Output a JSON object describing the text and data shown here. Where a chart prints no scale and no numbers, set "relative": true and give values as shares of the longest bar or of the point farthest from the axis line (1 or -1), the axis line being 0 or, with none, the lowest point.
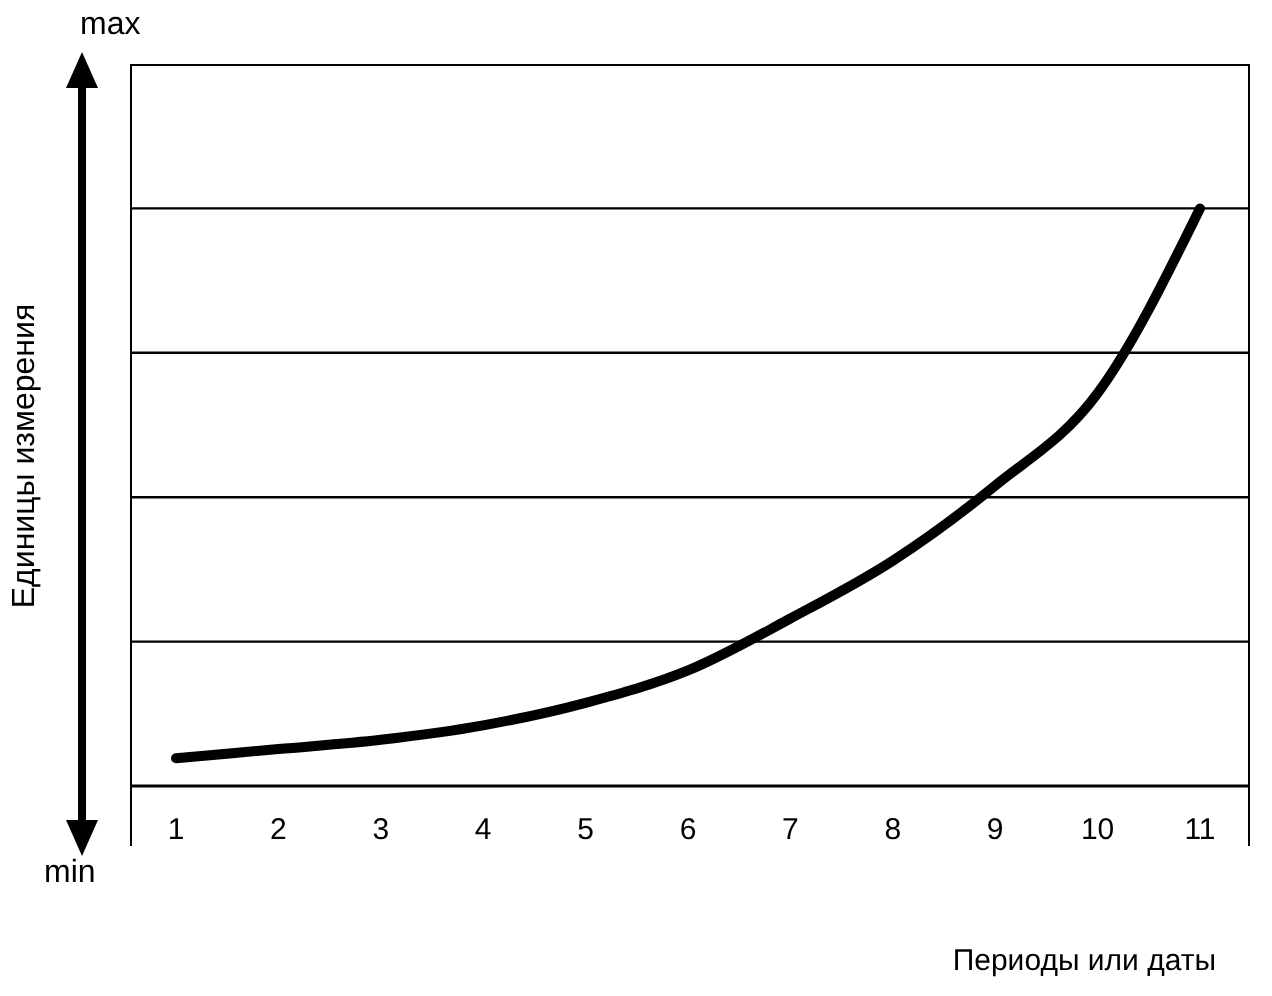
{
  "chart_data": {
    "type": "line",
    "relative": true,
    "xlabel": "Периоды или даты",
    "ylabel": "Единицы измерения",
    "annotations": [
      "max",
      "min"
    ],
    "categories": [
      "1",
      "2",
      "3",
      "4",
      "5",
      "6",
      "7",
      "8",
      "9",
      "10",
      "11"
    ],
    "series": [
      {
        "color": "#000000",
        "values": [
          0.048,
          0.064,
          0.08,
          0.105,
          0.144,
          0.2,
          0.29,
          0.39,
          0.52,
          0.68,
          1
        ]
      }
    ],
    "grid": "y",
    "marker": "none",
    "line_style": "solid"
  }
}
